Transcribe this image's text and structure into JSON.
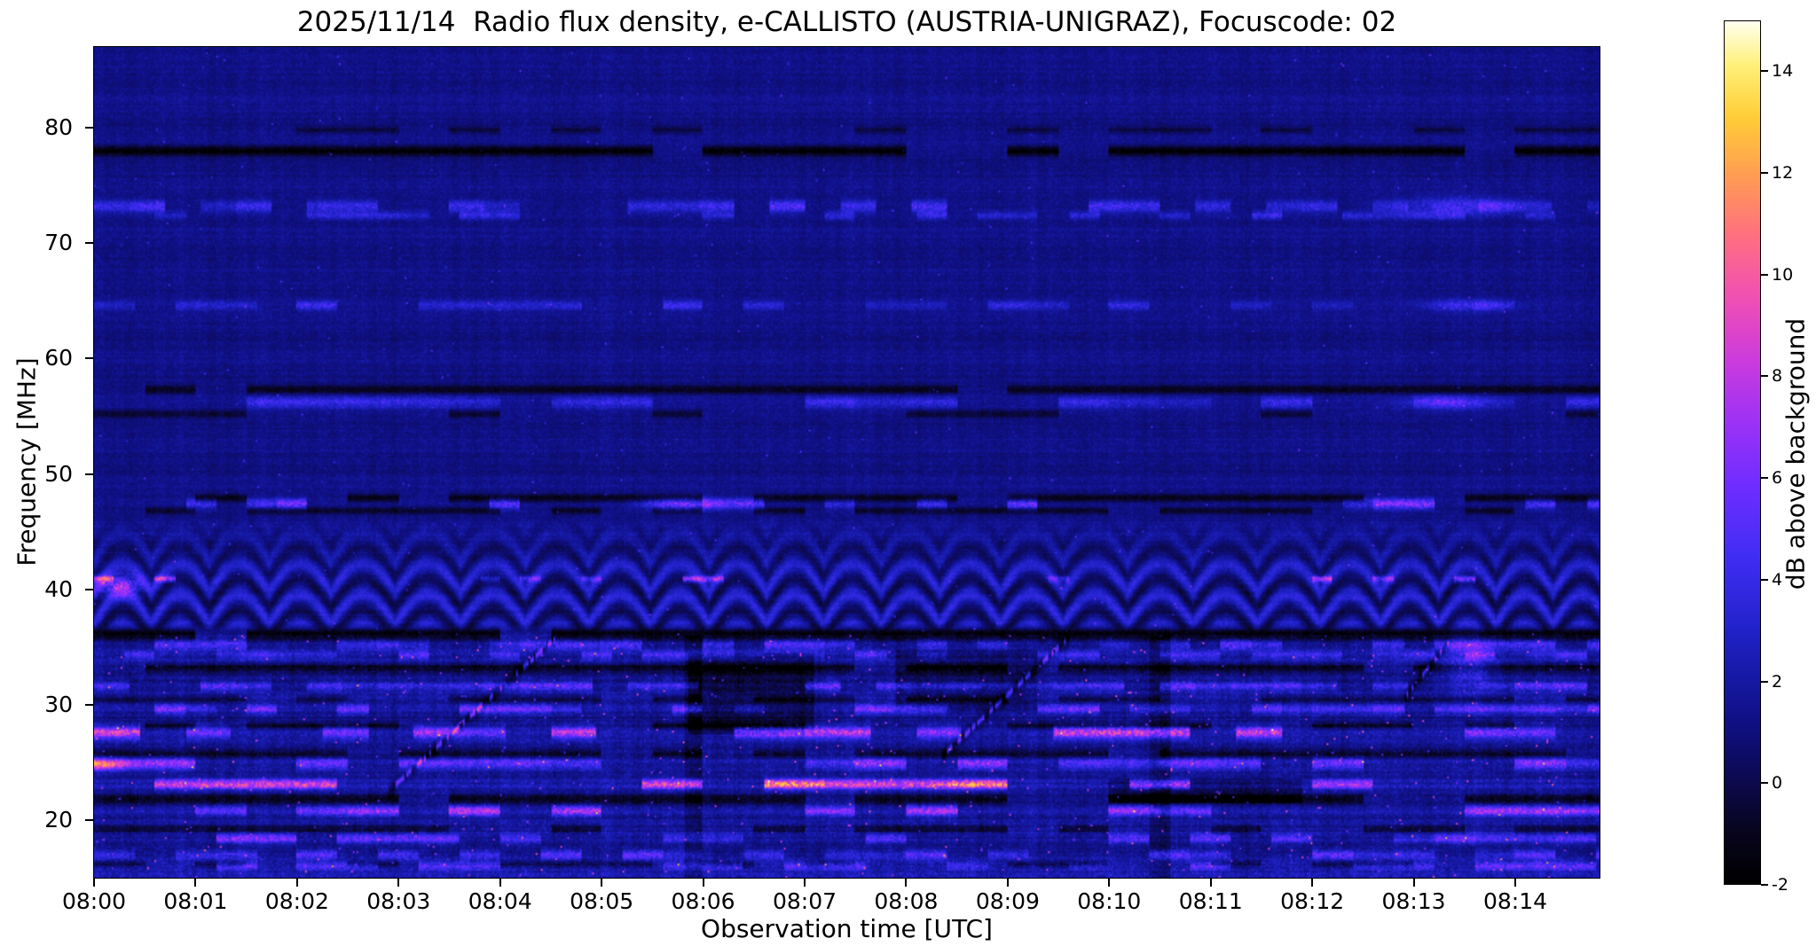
{
  "chart_data": {
    "type": "heatmap",
    "title": "2025/11/14  Radio flux density, e-CALLISTO (AUSTRIA-UNIGRAZ), Focuscode: 02",
    "xlabel": "Observation time [UTC]",
    "ylabel": "Frequency [MHz]",
    "x_tick_labels": [
      "08:00",
      "08:01",
      "08:02",
      "08:03",
      "08:04",
      "08:05",
      "08:06",
      "08:07",
      "08:08",
      "08:09",
      "08:10",
      "08:11",
      "08:12",
      "08:13",
      "08:14"
    ],
    "x_range_min": [
      0,
      14.83
    ],
    "y_ticks": [
      20,
      30,
      40,
      50,
      60,
      70,
      80
    ],
    "y_range_mhz": [
      15,
      87
    ],
    "colorbar": {
      "label": "dB above background",
      "ticks": [
        -2,
        0,
        2,
        4,
        6,
        8,
        10,
        12,
        14
      ],
      "vmin": -2,
      "vmax": 15
    },
    "colormap_stops": [
      [
        0.0,
        0,
        0,
        0
      ],
      [
        0.06,
        8,
        5,
        30
      ],
      [
        0.12,
        12,
        10,
        80
      ],
      [
        0.18,
        15,
        15,
        128
      ],
      [
        0.24,
        22,
        25,
        165
      ],
      [
        0.3,
        35,
        35,
        205
      ],
      [
        0.38,
        65,
        45,
        245
      ],
      [
        0.46,
        110,
        45,
        255
      ],
      [
        0.54,
        160,
        50,
        245
      ],
      [
        0.61,
        205,
        60,
        220
      ],
      [
        0.68,
        240,
        80,
        180
      ],
      [
        0.75,
        255,
        110,
        130
      ],
      [
        0.82,
        255,
        155,
        85
      ],
      [
        0.89,
        255,
        205,
        55
      ],
      [
        0.95,
        255,
        240,
        120
      ],
      [
        1.0,
        255,
        255,
        235
      ]
    ],
    "background_db": 1.2,
    "features": {
      "dark_lines": [
        {
          "f": 79.8,
          "w": 0.3,
          "amp": 1.5,
          "duty": 0.5
        },
        {
          "f": 78.0,
          "w": 0.45,
          "amp": 3.2,
          "duty": 0.8
        },
        {
          "f": 57.3,
          "w": 0.4,
          "amp": 2.2,
          "duty": 0.85
        },
        {
          "f": 55.2,
          "w": 0.35,
          "amp": 1.8,
          "duty": 0.6
        },
        {
          "f": 47.9,
          "w": 0.35,
          "amp": 2.5,
          "duty": 0.8
        },
        {
          "f": 46.8,
          "w": 0.3,
          "amp": 2.0,
          "duty": 0.6
        },
        {
          "f": 36.1,
          "w": 0.5,
          "amp": 3.0,
          "duty": 0.95
        },
        {
          "f": 33.2,
          "w": 0.4,
          "amp": 2.5,
          "duty": 0.9
        },
        {
          "f": 30.5,
          "w": 0.3,
          "amp": 2.0,
          "duty": 0.6
        },
        {
          "f": 28.2,
          "w": 0.3,
          "amp": 2.2,
          "duty": 0.7
        },
        {
          "f": 25.8,
          "w": 0.35,
          "amp": 2.2,
          "duty": 0.7
        },
        {
          "f": 21.8,
          "w": 0.4,
          "amp": 2.5,
          "duty": 0.75
        },
        {
          "f": 19.2,
          "w": 0.35,
          "amp": 2.2,
          "duty": 0.7
        },
        {
          "f": 16.2,
          "w": 0.3,
          "amp": 2.0,
          "duty": 0.6
        }
      ],
      "bright_lines": [
        {
          "f": 73.2,
          "w": 0.5,
          "amp": 3.2,
          "dash": 0.35,
          "duty": 0.55
        },
        {
          "f": 72.4,
          "w": 0.35,
          "amp": 2.2,
          "dash": 0.3,
          "duty": 0.45
        },
        {
          "f": 64.6,
          "w": 0.4,
          "amp": 2.4,
          "dash": 0.4,
          "duty": 0.5
        },
        {
          "f": 56.2,
          "w": 0.5,
          "amp": 2.4,
          "dash": 0.5,
          "duty": 0.5
        },
        {
          "f": 47.4,
          "w": 0.45,
          "amp": 4.5,
          "dash": 0.3,
          "duty": 0.28
        },
        {
          "f": 40.9,
          "w": 0.25,
          "amp": 5.0,
          "dash": 0.2,
          "duty": 0.12
        },
        {
          "f": 35.2,
          "w": 0.45,
          "amp": 3.2,
          "dash": 0.3,
          "duty": 0.6
        },
        {
          "f": 34.3,
          "w": 0.35,
          "amp": 2.6,
          "dash": 0.3,
          "duty": 0.5
        },
        {
          "f": 31.6,
          "w": 0.4,
          "amp": 3.4,
          "dash": 0.35,
          "duty": 0.6
        },
        {
          "f": 29.6,
          "w": 0.4,
          "amp": 3.6,
          "dash": 0.3,
          "duty": 0.55
        },
        {
          "f": 27.6,
          "w": 0.5,
          "amp": 5.5,
          "dash": 0.45,
          "duty": 0.55
        },
        {
          "f": 24.9,
          "w": 0.45,
          "amp": 4.5,
          "dash": 0.5,
          "duty": 0.6
        },
        {
          "f": 23.1,
          "w": 0.4,
          "amp": 8.0,
          "dash": 0.6,
          "duty": 0.55
        },
        {
          "f": 20.8,
          "w": 0.45,
          "amp": 5.5,
          "dash": 0.5,
          "duty": 0.5
        },
        {
          "f": 18.4,
          "w": 0.4,
          "amp": 4.0,
          "dash": 0.4,
          "duty": 0.55
        },
        {
          "f": 17.0,
          "w": 0.4,
          "amp": 3.5,
          "dash": 0.4,
          "duty": 0.5
        },
        {
          "f": 16.0,
          "w": 0.35,
          "amp": 3.0,
          "dash": 0.4,
          "duty": 0.5
        }
      ],
      "fringes": {
        "f_min": 36.3,
        "f_max": 46.5,
        "amp": 1.3,
        "period_min": 0.3,
        "k_f": 2.3
      },
      "streaks": [
        {
          "t0": 2.9,
          "t1": 4.55,
          "f0": 22.5,
          "f1": 35.8
        },
        {
          "t0": 8.35,
          "t1": 9.6,
          "f0": 25.5,
          "f1": 35.8
        },
        {
          "t0": 12.9,
          "t1": 13.35,
          "f0": 30.5,
          "f1": 35.5
        }
      ],
      "blobs": [
        {
          "t": 0.25,
          "f": 40.3,
          "tw": 0.22,
          "fw": 0.9,
          "amp": 7.0
        },
        {
          "t": 0.05,
          "f": 24.8,
          "tw": 0.3,
          "fw": 0.5,
          "amp": 6.0
        },
        {
          "t": 5.75,
          "f": 47.4,
          "tw": 0.35,
          "fw": 0.5,
          "amp": 5.5
        },
        {
          "t": 13.4,
          "f": 73.2,
          "tw": 0.5,
          "fw": 0.8,
          "amp": 3.5
        },
        {
          "t": 13.5,
          "f": 64.6,
          "tw": 0.4,
          "fw": 0.5,
          "amp": 3.0
        },
        {
          "t": 13.3,
          "f": 56.2,
          "tw": 0.4,
          "fw": 0.6,
          "amp": 3.0
        },
        {
          "t": 13.55,
          "f": 33.5,
          "tw": 0.25,
          "fw": 2.5,
          "amp": 3.0
        }
      ],
      "dark_patches": [
        {
          "t0": 5.85,
          "t1": 7.1,
          "f0": 27.5,
          "f1": 34.5,
          "amp": 1.6
        },
        {
          "t0": 7.9,
          "t1": 9.3,
          "f0": 29.5,
          "f1": 34.8,
          "amp": 1.2
        },
        {
          "t0": 10.0,
          "t1": 11.9,
          "f0": 21.5,
          "f1": 23.6,
          "amp": 1.5
        },
        {
          "t0": 5.82,
          "t1": 6.0,
          "f0": 15.0,
          "f1": 36.0,
          "amp": 1.3
        },
        {
          "t0": 10.4,
          "t1": 10.6,
          "f0": 15.0,
          "f1": 36.0,
          "amp": 1.2
        }
      ]
    }
  }
}
